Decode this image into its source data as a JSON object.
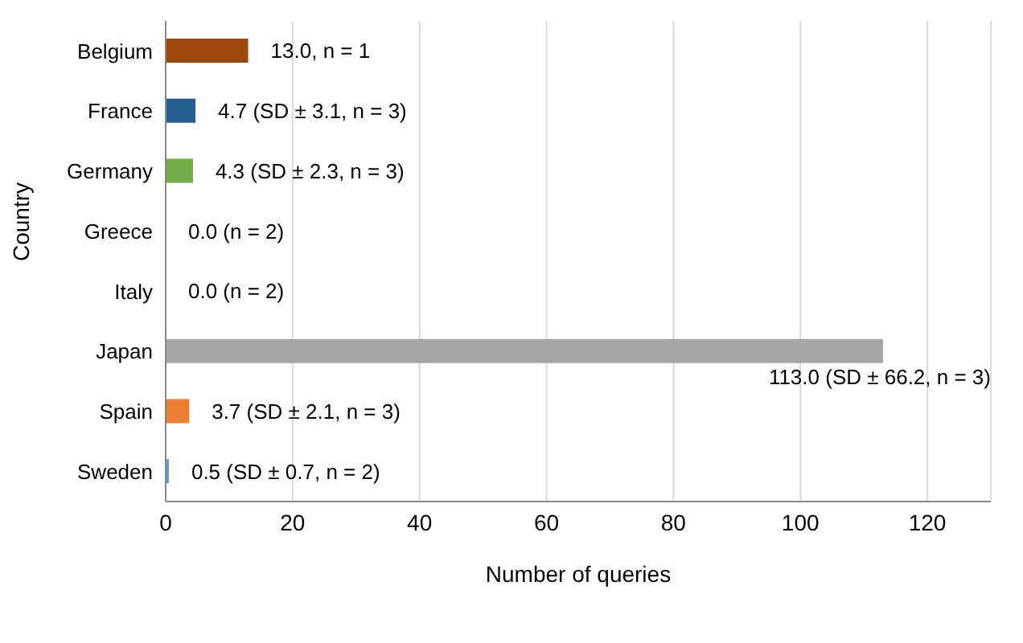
{
  "chart_data": {
    "type": "bar",
    "orientation": "horizontal",
    "xlabel": "Number of queries",
    "ylabel": "Country",
    "categories": [
      "Belgium",
      "France",
      "Germany",
      "Greece",
      "Italy",
      "Japan",
      "Spain",
      "Sweden"
    ],
    "values": [
      13.0,
      4.7,
      4.3,
      0.0,
      0.0,
      113.0,
      3.7,
      0.5
    ],
    "colors": [
      "#9e480e",
      "#255e91",
      "#70ad47",
      "#ffc000",
      "#4472c4",
      "#a5a5a5",
      "#ed7d31",
      "#5b9bd5"
    ],
    "value_labels": [
      "13.0, n = 1",
      "4.7 (SD ± 3.1, n = 3)",
      "4.3 (SD ± 2.3, n = 3)",
      "0.0 (n = 2)",
      "0.0 (n = 2)",
      "113.0 (SD ± 66.2, n = 3)",
      "3.7 (SD ± 2.1, n = 3)",
      "0.5 (SD ± 0.7, n = 2)"
    ],
    "xlim": [
      0,
      130
    ],
    "xticks": [
      0,
      20,
      40,
      60,
      80,
      100,
      120
    ],
    "grid": "x"
  }
}
